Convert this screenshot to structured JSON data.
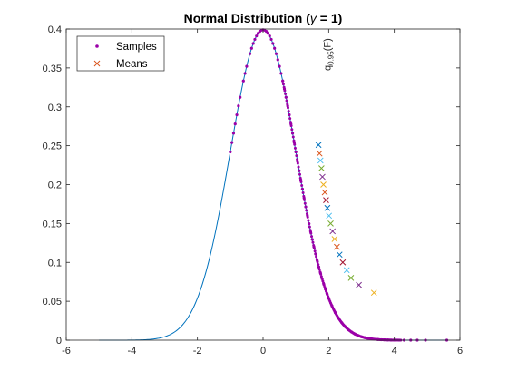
{
  "chart_data": {
    "type": "scatter",
    "title_prefix": "Normal Distribution (",
    "title_symbol": "γ",
    "title_suffix": " = 1)",
    "xlim": [
      -6,
      6
    ],
    "ylim": [
      0,
      0.4
    ],
    "xticks": [
      -6,
      -4,
      -2,
      0,
      2,
      4,
      6
    ],
    "yticks": [
      0,
      0.05,
      0.1,
      0.15,
      0.2,
      0.25,
      0.3,
      0.35,
      0.4
    ],
    "xtick_labels": [
      "-6",
      "-4",
      "-2",
      "0",
      "2",
      "4",
      "6"
    ],
    "ytick_labels": [
      "0",
      "0.05",
      "0.1",
      "0.15",
      "0.2",
      "0.25",
      "0.3",
      "0.35",
      "0.4"
    ],
    "grid": false,
    "legend_position": "top-left",
    "curve": {
      "x_range": [
        -5,
        5.6
      ],
      "color": "#0072BD"
    },
    "quantile_line": {
      "x": 1.645,
      "label_base": "q",
      "label_subscript": "0.95",
      "label_suffix": "(F)",
      "color": "#000000"
    },
    "series": [
      {
        "name": "Samples",
        "marker": "dot",
        "color": "#9B00A8",
        "x": [
          -1.0,
          -0.95,
          -0.9,
          -0.85,
          -0.8,
          -0.75,
          -0.7,
          -0.6,
          -0.55,
          -0.5,
          -0.4,
          -0.35,
          -0.3,
          -0.25,
          -0.2,
          -0.15,
          -0.1,
          -0.05,
          0.0,
          0.05,
          0.1,
          0.15,
          0.2,
          0.25,
          0.3,
          0.35,
          0.4,
          0.45,
          0.5,
          0.55,
          0.6,
          0.65,
          0.7,
          0.75,
          0.8,
          0.85,
          0.9,
          0.95,
          1.0,
          1.05,
          1.1,
          1.15,
          1.2,
          1.25,
          1.3,
          1.35,
          1.4,
          1.45,
          1.5,
          1.55,
          1.6,
          1.65,
          1.7,
          1.75,
          1.8,
          1.85,
          1.9,
          1.95,
          2.0,
          2.1,
          2.2,
          2.3,
          2.4,
          2.5,
          2.6,
          2.7,
          2.8,
          2.9,
          3.0,
          3.1,
          3.2,
          3.3,
          3.4,
          3.5,
          3.6,
          3.7,
          3.8,
          3.9,
          4.0,
          4.15,
          4.3,
          4.5,
          4.7,
          4.95,
          5.6
        ]
      },
      {
        "name": "Means",
        "marker": "x",
        "x": [
          1.69,
          1.72,
          1.75,
          1.78,
          1.81,
          1.84,
          1.88,
          1.92,
          1.96,
          2.01,
          2.06,
          2.12,
          2.18,
          2.25,
          2.33,
          2.43,
          2.55,
          2.68,
          2.92,
          3.38
        ],
        "y": [
          0.251,
          0.24,
          0.231,
          0.221,
          0.21,
          0.2,
          0.19,
          0.18,
          0.17,
          0.16,
          0.15,
          0.14,
          0.13,
          0.12,
          0.11,
          0.1,
          0.09,
          0.08,
          0.071,
          0.061
        ],
        "colors": [
          "#0072BD",
          "#D95319",
          "#4DBEEE",
          "#77AC30",
          "#7E2F8E",
          "#EDB120",
          "#D95319",
          "#A2142F",
          "#0072BD",
          "#4DBEEE",
          "#77AC30",
          "#7E2F8E",
          "#EDB120",
          "#D95319",
          "#0072BD",
          "#A2142F",
          "#4DBEEE",
          "#77AC30",
          "#7E2F8E",
          "#EDB120"
        ]
      }
    ]
  }
}
